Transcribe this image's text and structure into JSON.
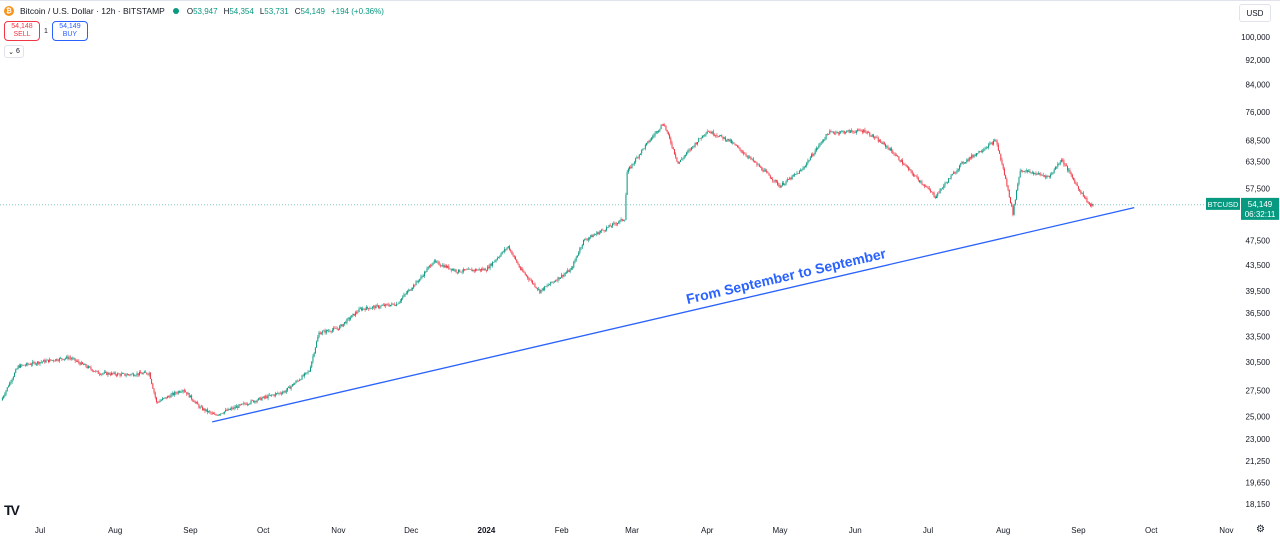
{
  "header": {
    "symbol_icon": "bitcoin-icon",
    "symbol_title": "Bitcoin / U.S. Dollar · 12h · BITSTAMP",
    "ohlc": {
      "open_label": "O",
      "open": "53,947",
      "high_label": "H",
      "high": "54,354",
      "low_label": "L",
      "low": "53,731",
      "close_label": "C",
      "close": "54,149",
      "change": "+194 (+0.36%)"
    },
    "status_color": "#089981"
  },
  "trade": {
    "sell_price": "54,148",
    "sell_label": "SELL",
    "spread": "1",
    "buy_price": "54,149",
    "buy_label": "BUY"
  },
  "indicators_toggle": {
    "icon": "chevron-down-icon",
    "count": "6"
  },
  "currency_selector": "USD",
  "price_tag": {
    "ticker": "BTCUSD",
    "price": "54,149",
    "countdown": "06:32:11",
    "color": "#089981"
  },
  "logo": "TV",
  "settings_icon": "gear-icon",
  "chart_data": {
    "type": "candlestick",
    "ylabel_side": "right",
    "y_scale": "log",
    "y_ticks": [
      18150,
      19650,
      21250,
      23000,
      25000,
      27500,
      30500,
      33500,
      36500,
      39500,
      43500,
      47500,
      57500,
      63500,
      68500,
      76000,
      84000,
      92000,
      100000
    ],
    "y_tick_labels": [
      "18,150",
      "19,650",
      "21,250",
      "23,000",
      "25,000",
      "27,500",
      "30,500",
      "33,500",
      "36,500",
      "39,500",
      "43,500",
      "47,500",
      "57,500",
      "63,500",
      "68,500",
      "76,000",
      "84,000",
      "92,000",
      "100,000"
    ],
    "x_tick_labels": [
      "Jul",
      "Aug",
      "Sep",
      "Oct",
      "Nov",
      "Dec",
      "2024",
      "Feb",
      "Mar",
      "Apr",
      "May",
      "Jun",
      "Jul",
      "Aug",
      "Sep",
      "Oct",
      "Nov"
    ],
    "x_tick_bold": "2024",
    "price_path": [
      [
        "2023-06-15",
        26500
      ],
      [
        "2023-06-22",
        30000
      ],
      [
        "2023-07-01",
        30500
      ],
      [
        "2023-07-13",
        31000
      ],
      [
        "2023-07-25",
        29300
      ],
      [
        "2023-08-05",
        29100
      ],
      [
        "2023-08-15",
        29300
      ],
      [
        "2023-08-18",
        26300
      ],
      [
        "2023-08-29",
        27600
      ],
      [
        "2023-09-05",
        25800
      ],
      [
        "2023-09-11",
        25100
      ],
      [
        "2023-09-25",
        26300
      ],
      [
        "2023-10-10",
        27400
      ],
      [
        "2023-10-20",
        29500
      ],
      [
        "2023-10-24",
        33900
      ],
      [
        "2023-11-01",
        34500
      ],
      [
        "2023-11-10",
        37000
      ],
      [
        "2023-11-25",
        37700
      ],
      [
        "2023-12-05",
        41500
      ],
      [
        "2023-12-10",
        44000
      ],
      [
        "2023-12-20",
        42500
      ],
      [
        "2024-01-01",
        42800
      ],
      [
        "2024-01-10",
        46500
      ],
      [
        "2024-01-15",
        42800
      ],
      [
        "2024-01-23",
        39500
      ],
      [
        "2024-02-05",
        42800
      ],
      [
        "2024-02-10",
        47500
      ],
      [
        "2024-02-27",
        51500
      ],
      [
        "2024-02-28",
        61000
      ],
      [
        "2024-03-05",
        66000
      ],
      [
        "2024-03-14",
        73000
      ],
      [
        "2024-03-20",
        63000
      ],
      [
        "2024-04-01",
        71000
      ],
      [
        "2024-04-10",
        68500
      ],
      [
        "2024-04-20",
        63500
      ],
      [
        "2024-05-01",
        58000
      ],
      [
        "2024-05-10",
        61500
      ],
      [
        "2024-05-21",
        70500
      ],
      [
        "2024-06-05",
        71000
      ],
      [
        "2024-06-15",
        66500
      ],
      [
        "2024-06-24",
        61000
      ],
      [
        "2024-07-04",
        55800
      ],
      [
        "2024-07-15",
        63000
      ],
      [
        "2024-07-29",
        68500
      ],
      [
        "2024-08-05",
        52500
      ],
      [
        "2024-08-08",
        61500
      ],
      [
        "2024-08-20",
        60000
      ],
      [
        "2024-08-25",
        64000
      ],
      [
        "2024-09-01",
        57500
      ],
      [
        "2024-09-06",
        53900
      ],
      [
        "2024-09-07",
        54149
      ]
    ],
    "trendline": {
      "start": [
        "2023-09-10",
        24500
      ],
      "end": [
        "2024-09-24",
        53600
      ],
      "color": "#2962ff"
    },
    "annotation": {
      "text": "From September to September",
      "color": "#2962ff"
    },
    "last_price_line": 54149,
    "up_color": "#089981",
    "down_color": "#f23645",
    "grid": false
  }
}
